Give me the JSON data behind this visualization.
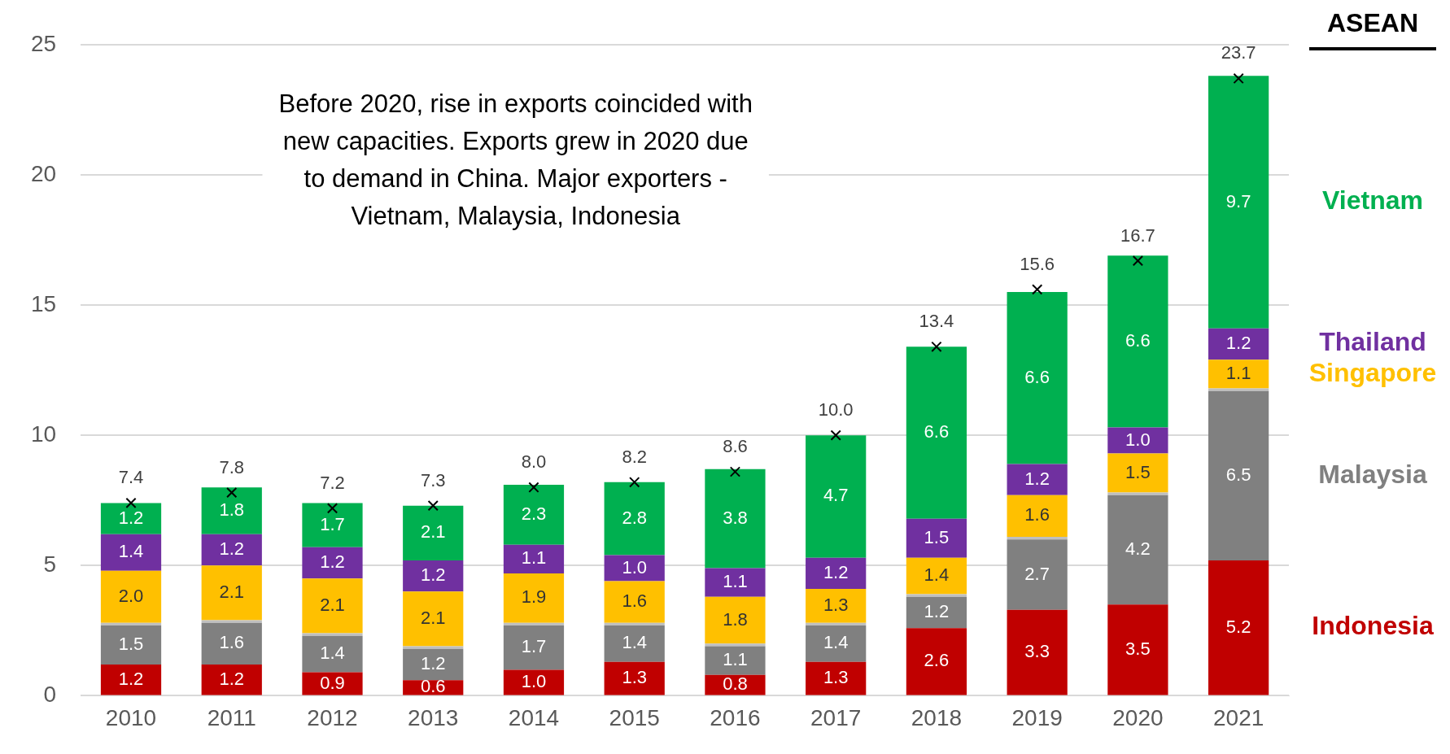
{
  "chart_data": {
    "type": "bar",
    "stacked": true,
    "categories": [
      "2010",
      "2011",
      "2012",
      "2013",
      "2014",
      "2015",
      "2016",
      "2017",
      "2018",
      "2019",
      "2020",
      "2021"
    ],
    "series": [
      {
        "name": "Indonesia",
        "color": "#c00000",
        "values": [
          1.2,
          1.2,
          0.9,
          0.6,
          1.0,
          1.3,
          0.8,
          1.3,
          2.6,
          3.3,
          3.5,
          5.2
        ],
        "value_labels": [
          "1.2",
          "1.2",
          "0.9",
          "0.6",
          "1.0",
          "1.3",
          "0.8",
          "1.3",
          "2.6",
          "3.3",
          "3.5",
          "5.2"
        ]
      },
      {
        "name": "Malaysia",
        "color": "#808080",
        "values": [
          1.5,
          1.6,
          1.4,
          1.2,
          1.7,
          1.4,
          1.1,
          1.4,
          1.2,
          2.7,
          4.2,
          6.5
        ],
        "value_labels": [
          "1.5",
          "1.6",
          "1.4",
          "1.2",
          "1.7",
          "1.4",
          "1.1",
          "1.4",
          "1.2",
          "2.7",
          "4.2",
          "6.5"
        ]
      },
      {
        "color": "#bfbfbf",
        "values": [
          0.1,
          0.1,
          0.1,
          0.1,
          0.1,
          0.1,
          0.1,
          0.1,
          0.1,
          0.1,
          0.1,
          0.1
        ]
      },
      {
        "name": "Singapore",
        "color": "#ffc000",
        "values": [
          2.0,
          2.1,
          2.1,
          2.1,
          1.9,
          1.6,
          1.8,
          1.3,
          1.4,
          1.6,
          1.5,
          1.1
        ],
        "value_labels": [
          "2.0",
          "2.1",
          "2.1",
          "2.1",
          "1.9",
          "1.6",
          "1.8",
          "1.3",
          "1.4",
          "1.6",
          "1.5",
          "1.1"
        ]
      },
      {
        "name": "Thailand",
        "color": "#7030a0",
        "values": [
          1.4,
          1.2,
          1.2,
          1.2,
          1.1,
          1.0,
          1.1,
          1.2,
          1.5,
          1.2,
          1.0,
          1.2
        ],
        "value_labels": [
          "1.4",
          "1.2",
          "1.2",
          "1.2",
          "1.1",
          "1.0",
          "1.1",
          "1.2",
          "1.5",
          "1.2",
          "1.0",
          "1.2"
        ]
      },
      {
        "name": "Vietnam",
        "color": "#00b050",
        "values": [
          1.2,
          1.8,
          1.7,
          2.1,
          2.3,
          2.8,
          3.8,
          4.7,
          6.6,
          6.6,
          6.6,
          9.7
        ],
        "value_labels": [
          "1.2",
          "1.8",
          "1.7",
          "2.1",
          "2.3",
          "2.8",
          "3.8",
          "4.7",
          "6.6",
          "6.6",
          "6.6",
          "9.7"
        ]
      },
      {
        "type": "scatter",
        "color": "#000000",
        "marker": "cross",
        "values": [
          7.4,
          7.8,
          7.2,
          7.3,
          8.0,
          8.2,
          8.6,
          10.0,
          13.4,
          15.6,
          16.7,
          23.7
        ],
        "value_labels": [
          "7.4",
          "7.8",
          "7.2",
          "7.3",
          "8.0",
          "8.2",
          "8.6",
          "10.0",
          "13.4",
          "15.6",
          "16.7",
          "23.7"
        ]
      }
    ],
    "ylim": [
      0,
      25
    ],
    "yticks": [
      0,
      5,
      10,
      15,
      20,
      25
    ],
    "grid": "y",
    "legend": "right",
    "legend_title": "ASEAN",
    "annotations": [
      "Before 2020, rise in exports coincided with new capacities. Exports grew in 2020 due to demand in China. Major exporters - Vietnam, Malaysia, Indonesia"
    ]
  }
}
